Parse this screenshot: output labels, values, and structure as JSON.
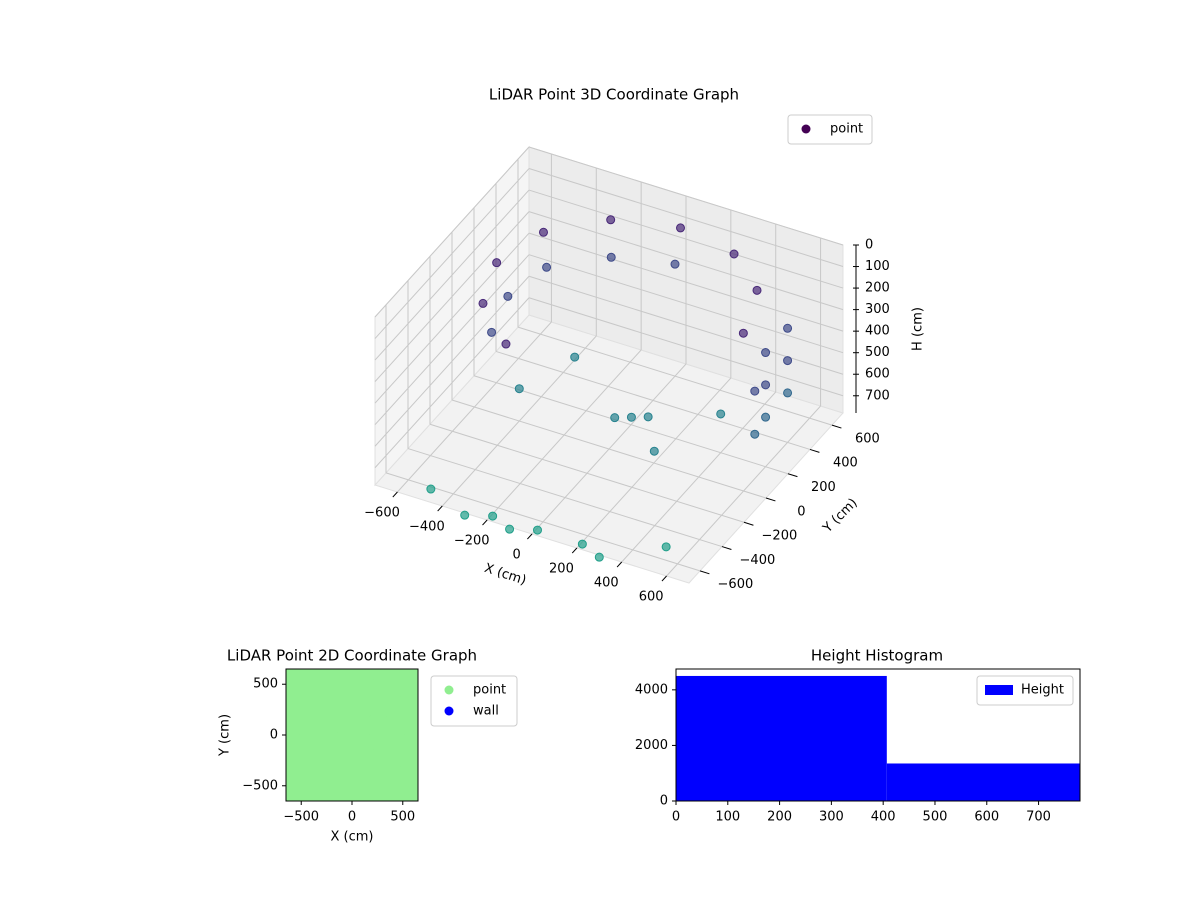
{
  "chart_data": [
    {
      "type": "scatter3d",
      "title": "LiDAR Point 3D Coordinate Graph",
      "xlabel": "X (cm)",
      "ylabel": "Y (cm)",
      "zlabel": "H (cm)",
      "cmap": "viridis",
      "zinverted": true,
      "legend": "upper right",
      "grid": true,
      "series": [
        {
          "name": "point",
          "color": "#440154",
          "x": [
            0,
            -275,
            -476,
            -550,
            -476,
            -275,
            275,
            476,
            550,
            0,
            -250,
            -450,
            -500,
            -450,
            100,
            150,
            50,
            -300,
            300,
            -400,
            400,
            0,
            -200,
            200,
            -500,
            500,
            -100,
            300,
            -300,
            600,
            600,
            600,
            600,
            600,
            600,
            650,
            650
          ],
          "y": [
            650,
            576,
            375,
            100,
            -175,
            -376,
            576,
            375,
            100,
            600,
            530,
            350,
            100,
            -150,
            0,
            50,
            -50,
            300,
            -200,
            0,
            200,
            -650,
            -650,
            -650,
            -600,
            -500,
            -700,
            -700,
            -700,
            200,
            200,
            200,
            400,
            400,
            400,
            0,
            0
          ],
          "z": [
            120,
            130,
            140,
            150,
            160,
            170,
            110,
            100,
            120,
            260,
            270,
            280,
            290,
            300,
            600,
            610,
            590,
            620,
            580,
            630,
            600,
            790,
            790,
            790,
            790,
            790,
            790,
            790,
            790,
            250,
            400,
            550,
            250,
            400,
            550,
            300,
            500
          ]
        }
      ],
      "xlim": [
        -700,
        700
      ],
      "ylim": [
        -700,
        700
      ],
      "zlim": [
        0,
        780
      ],
      "xticks": [
        {
          "value": -600,
          "label": "−600"
        },
        {
          "value": -400,
          "label": "−400"
        },
        {
          "value": -200,
          "label": "−200"
        },
        0,
        200,
        400,
        600
      ],
      "yticks": [
        {
          "value": -600,
          "label": "−600"
        },
        {
          "value": -400,
          "label": "−400"
        },
        {
          "value": -200,
          "label": "−200"
        },
        0,
        200,
        400,
        600
      ],
      "zticks": [
        0,
        100,
        200,
        300,
        400,
        500,
        600,
        700
      ]
    },
    {
      "type": "scatter",
      "title": "LiDAR Point 2D Coordinate Graph",
      "xlabel": "X (cm)",
      "ylabel": "Y (cm)",
      "legend": "outside upper right",
      "series": [
        {
          "name": "point",
          "color": "#90ee90",
          "x": [
            -600,
            -430,
            -260,
            -90,
            90,
            260,
            430,
            600,
            -600,
            -430,
            -260,
            -90,
            90,
            260,
            430,
            600,
            -600,
            -430,
            -260,
            -90,
            90,
            260,
            430,
            600,
            -600,
            -430,
            -260,
            -90,
            90,
            260,
            430,
            600,
            -600,
            -430,
            -260,
            -90,
            90,
            260,
            430,
            600,
            -600,
            -430,
            -260,
            -90,
            90,
            260,
            430,
            600,
            -600,
            -430,
            -260,
            -90,
            90,
            260,
            430,
            600,
            -600,
            -430,
            -260,
            -90,
            90,
            260,
            430,
            600
          ],
          "y": [
            600,
            600,
            600,
            600,
            600,
            600,
            600,
            600,
            430,
            430,
            430,
            430,
            430,
            430,
            430,
            430,
            260,
            260,
            260,
            260,
            260,
            260,
            260,
            260,
            90,
            90,
            90,
            90,
            90,
            90,
            90,
            90,
            -90,
            -90,
            -90,
            -90,
            -90,
            -90,
            -90,
            -90,
            -260,
            -260,
            -260,
            -260,
            -260,
            -260,
            -260,
            -260,
            -430,
            -430,
            -430,
            -430,
            -430,
            -430,
            -430,
            -430,
            -600,
            -600,
            -600,
            -600,
            -600,
            -600,
            -600,
            -600
          ]
        },
        {
          "name": "wall",
          "color": "#0000ff",
          "x": [],
          "y": []
        }
      ],
      "xlim": [
        -650,
        650
      ],
      "ylim": [
        -650,
        650
      ],
      "xticks": [
        {
          "value": -500,
          "label": "−500"
        },
        0,
        500
      ],
      "yticks": [
        {
          "value": -500,
          "label": "−500"
        },
        0,
        500
      ]
    },
    {
      "type": "histogram",
      "title": "Height Histogram",
      "legend": "upper right",
      "series": [
        {
          "name": "Height",
          "color": "#0000ff",
          "bins": [
            0,
            407,
            780
          ],
          "values": [
            4500,
            1350
          ]
        }
      ],
      "xlim": [
        0,
        780
      ],
      "ylim": [
        0,
        4750
      ],
      "xticks": [
        0,
        100,
        200,
        300,
        400,
        500,
        600,
        700
      ],
      "yticks": [
        0,
        2000,
        4000
      ]
    }
  ]
}
